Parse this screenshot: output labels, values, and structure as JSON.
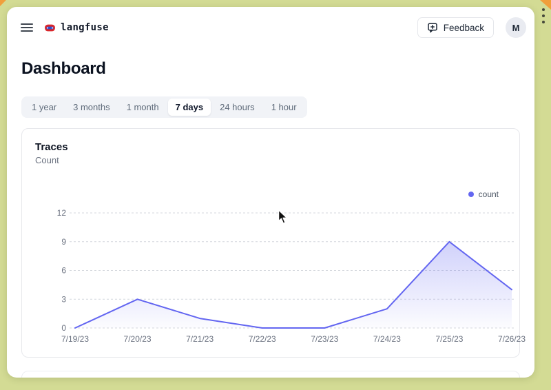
{
  "colors": {
    "accent": "#6366f1",
    "frame": "#d3db94",
    "frame_accent": "#f09f3c",
    "tab_bar_bg": "#f1f3f7",
    "card_border": "#e7e8ec",
    "text_muted": "#6b7280"
  },
  "header": {
    "brand": "langfuse",
    "feedback_label": "Feedback",
    "avatar_initial": "M"
  },
  "page": {
    "title": "Dashboard"
  },
  "tabs": [
    {
      "label": "1 year",
      "active": false
    },
    {
      "label": "3 months",
      "active": false
    },
    {
      "label": "1 month",
      "active": false
    },
    {
      "label": "7 days",
      "active": true
    },
    {
      "label": "24 hours",
      "active": false
    },
    {
      "label": "1 hour",
      "active": false
    }
  ],
  "traces_card": {
    "title": "Traces",
    "subtitle": "Count"
  },
  "chart_data": {
    "type": "area",
    "title": "Traces",
    "ylabel": "Count",
    "x": [
      "7/19/23",
      "7/20/23",
      "7/21/23",
      "7/22/23",
      "7/23/23",
      "7/24/23",
      "7/25/23",
      "7/26/23"
    ],
    "series": [
      {
        "name": "count",
        "color": "#6366f1",
        "values": [
          0,
          3,
          1,
          0,
          0,
          2,
          9,
          4
        ]
      }
    ],
    "yticks": [
      0,
      3,
      6,
      9,
      12
    ],
    "ylim": [
      0,
      12
    ],
    "grid": "horizontal-dashed",
    "legend_position": "top-right"
  }
}
